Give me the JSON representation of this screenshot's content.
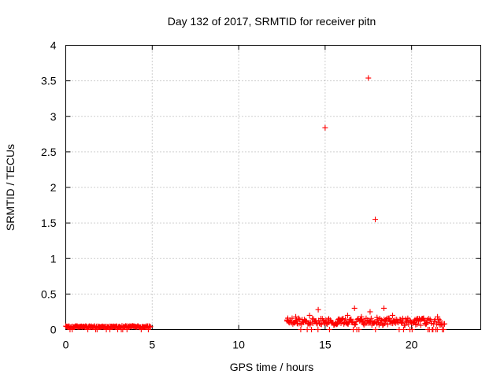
{
  "chart_data": {
    "type": "scatter",
    "title": "Day 132 of 2017, SRMTID for receiver pitn",
    "xlabel": "GPS time / hours",
    "ylabel": "SRMTID / TECUs",
    "xlim": [
      0,
      24
    ],
    "ylim": [
      0,
      4
    ],
    "x_ticks": [
      0,
      5,
      10,
      15,
      20
    ],
    "x_tick_labels": [
      "0",
      "5",
      "10",
      "15",
      "20"
    ],
    "y_ticks": [
      0,
      0.5,
      1,
      1.5,
      2,
      2.5,
      3,
      3.5,
      4
    ],
    "y_tick_labels": [
      "0",
      "0.5",
      "1",
      "1.5",
      "2",
      "2.5",
      "3",
      "3.5",
      "4"
    ],
    "grid": true,
    "marker": "+",
    "series": [
      {
        "name": "SRMTID",
        "color": "#ff0000",
        "segments": [
          {
            "x_start": 0.0,
            "x_end": 4.9,
            "count": 120,
            "baseline": 0.04,
            "amplitude": 0.02
          },
          {
            "x_start": 12.8,
            "x_end": 21.9,
            "count": 220,
            "baseline": 0.1,
            "amplitude": 0.1
          }
        ],
        "x": [
          12.8,
          13.3,
          14.1,
          14.6,
          15.2,
          15.8,
          16.3,
          16.7,
          17.1,
          17.6,
          18.0,
          18.4,
          18.9,
          19.5,
          20.3,
          20.9,
          21.5,
          21.9
        ],
        "y": [
          0.12,
          0.18,
          0.2,
          0.28,
          0.1,
          0.15,
          0.2,
          0.3,
          0.18,
          0.25,
          0.17,
          0.3,
          0.2,
          0.12,
          0.15,
          0.1,
          0.18,
          0.08
        ],
        "outliers_x": [
          15.0,
          17.5,
          17.9
        ],
        "outliers_y": [
          2.84,
          3.54,
          1.55
        ]
      }
    ]
  }
}
